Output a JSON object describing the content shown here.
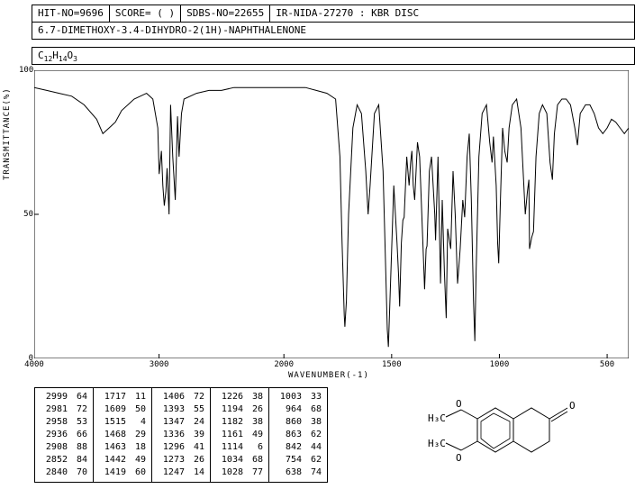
{
  "header": {
    "hit_no": "HIT-NO=9696",
    "score": "SCORE=  (  )",
    "sdbs_no": "SDBS-NO=22655",
    "ir_info": "IR-NIDA-27270 : KBR DISC",
    "compound_name": "6.7-DIMETHOXY-3.4-DIHYDRO-2(1H)-NAPHTHALENONE"
  },
  "formula": {
    "c": "C",
    "c_n": "12",
    "h": "H",
    "h_n": "14",
    "o": "O",
    "o_n": "3"
  },
  "chart": {
    "type": "line",
    "xlabel": "WAVENUMBER(-1)",
    "ylabel": "TRANSMITTANCE(%)",
    "xlim": [
      4000,
      400
    ],
    "ylim": [
      0,
      100
    ],
    "xticks": [
      4000,
      3000,
      2000,
      1500,
      1000,
      500
    ],
    "yticks": [
      0,
      50,
      100
    ],
    "line_color": "#000000",
    "background": "#ffffff",
    "border_color": "#000000",
    "spectrum": [
      [
        4000,
        94
      ],
      [
        3900,
        93
      ],
      [
        3800,
        92
      ],
      [
        3700,
        91
      ],
      [
        3600,
        88
      ],
      [
        3500,
        83
      ],
      [
        3450,
        78
      ],
      [
        3400,
        80
      ],
      [
        3350,
        82
      ],
      [
        3300,
        86
      ],
      [
        3200,
        90
      ],
      [
        3100,
        92
      ],
      [
        3050,
        90
      ],
      [
        3010,
        80
      ],
      [
        2999,
        64
      ],
      [
        2990,
        68
      ],
      [
        2981,
        72
      ],
      [
        2970,
        60
      ],
      [
        2958,
        53
      ],
      [
        2945,
        58
      ],
      [
        2936,
        66
      ],
      [
        2920,
        50
      ],
      [
        2908,
        88
      ],
      [
        2890,
        70
      ],
      [
        2870,
        55
      ],
      [
        2852,
        84
      ],
      [
        2840,
        70
      ],
      [
        2820,
        85
      ],
      [
        2800,
        90
      ],
      [
        2700,
        92
      ],
      [
        2600,
        93
      ],
      [
        2500,
        93
      ],
      [
        2400,
        94
      ],
      [
        2300,
        94
      ],
      [
        2200,
        94
      ],
      [
        2100,
        94
      ],
      [
        2000,
        94
      ],
      [
        1950,
        94
      ],
      [
        1900,
        94
      ],
      [
        1850,
        93
      ],
      [
        1800,
        92
      ],
      [
        1760,
        90
      ],
      [
        1740,
        70
      ],
      [
        1730,
        40
      ],
      [
        1720,
        15
      ],
      [
        1717,
        11
      ],
      [
        1710,
        20
      ],
      [
        1700,
        50
      ],
      [
        1680,
        80
      ],
      [
        1660,
        88
      ],
      [
        1640,
        85
      ],
      [
        1620,
        65
      ],
      [
        1609,
        50
      ],
      [
        1600,
        60
      ],
      [
        1580,
        85
      ],
      [
        1560,
        88
      ],
      [
        1540,
        65
      ],
      [
        1520,
        10
      ],
      [
        1515,
        4
      ],
      [
        1510,
        15
      ],
      [
        1490,
        60
      ],
      [
        1475,
        40
      ],
      [
        1468,
        29
      ],
      [
        1463,
        18
      ],
      [
        1455,
        40
      ],
      [
        1448,
        48
      ],
      [
        1442,
        49
      ],
      [
        1430,
        70
      ],
      [
        1419,
        60
      ],
      [
        1412,
        68
      ],
      [
        1406,
        72
      ],
      [
        1400,
        60
      ],
      [
        1393,
        55
      ],
      [
        1380,
        75
      ],
      [
        1370,
        70
      ],
      [
        1360,
        50
      ],
      [
        1350,
        30
      ],
      [
        1347,
        24
      ],
      [
        1340,
        38
      ],
      [
        1336,
        39
      ],
      [
        1325,
        65
      ],
      [
        1315,
        70
      ],
      [
        1300,
        50
      ],
      [
        1296,
        41
      ],
      [
        1285,
        70
      ],
      [
        1278,
        45
      ],
      [
        1273,
        26
      ],
      [
        1265,
        55
      ],
      [
        1255,
        30
      ],
      [
        1247,
        14
      ],
      [
        1240,
        45
      ],
      [
        1230,
        40
      ],
      [
        1226,
        38
      ],
      [
        1215,
        65
      ],
      [
        1205,
        50
      ],
      [
        1194,
        26
      ],
      [
        1188,
        32
      ],
      [
        1182,
        38
      ],
      [
        1170,
        55
      ],
      [
        1161,
        49
      ],
      [
        1150,
        70
      ],
      [
        1140,
        78
      ],
      [
        1130,
        55
      ],
      [
        1120,
        20
      ],
      [
        1114,
        6
      ],
      [
        1108,
        30
      ],
      [
        1095,
        70
      ],
      [
        1080,
        85
      ],
      [
        1060,
        88
      ],
      [
        1045,
        75
      ],
      [
        1034,
        68
      ],
      [
        1028,
        77
      ],
      [
        1015,
        60
      ],
      [
        1008,
        40
      ],
      [
        1003,
        33
      ],
      [
        995,
        55
      ],
      [
        985,
        80
      ],
      [
        975,
        72
      ],
      [
        964,
        68
      ],
      [
        955,
        80
      ],
      [
        940,
        88
      ],
      [
        920,
        90
      ],
      [
        900,
        80
      ],
      [
        880,
        50
      ],
      [
        870,
        58
      ],
      [
        863,
        62
      ],
      [
        860,
        38
      ],
      [
        850,
        42
      ],
      [
        842,
        44
      ],
      [
        830,
        70
      ],
      [
        815,
        85
      ],
      [
        800,
        88
      ],
      [
        780,
        85
      ],
      [
        765,
        68
      ],
      [
        754,
        62
      ],
      [
        745,
        78
      ],
      [
        730,
        88
      ],
      [
        710,
        90
      ],
      [
        690,
        90
      ],
      [
        670,
        88
      ],
      [
        650,
        80
      ],
      [
        638,
        74
      ],
      [
        625,
        85
      ],
      [
        600,
        88
      ],
      [
        580,
        88
      ],
      [
        560,
        85
      ],
      [
        540,
        80
      ],
      [
        520,
        78
      ],
      [
        500,
        80
      ],
      [
        480,
        83
      ],
      [
        460,
        82
      ],
      [
        440,
        80
      ],
      [
        420,
        78
      ],
      [
        400,
        80
      ]
    ]
  },
  "peak_table": {
    "columns": [
      [
        [
          2999,
          64
        ],
        [
          2981,
          72
        ],
        [
          2958,
          53
        ],
        [
          2936,
          66
        ],
        [
          2908,
          88
        ],
        [
          2852,
          84
        ],
        [
          2840,
          70
        ]
      ],
      [
        [
          1717,
          11
        ],
        [
          1609,
          50
        ],
        [
          1515,
          4
        ],
        [
          1468,
          29
        ],
        [
          1463,
          18
        ],
        [
          1442,
          49
        ],
        [
          1419,
          60
        ]
      ],
      [
        [
          1406,
          72
        ],
        [
          1393,
          55
        ],
        [
          1347,
          24
        ],
        [
          1336,
          39
        ],
        [
          1296,
          41
        ],
        [
          1273,
          26
        ],
        [
          1247,
          14
        ]
      ],
      [
        [
          1226,
          38
        ],
        [
          1194,
          26
        ],
        [
          1182,
          38
        ],
        [
          1161,
          49
        ],
        [
          1114,
          6
        ],
        [
          1034,
          68
        ],
        [
          1028,
          77
        ]
      ],
      [
        [
          1003,
          33
        ],
        [
          964,
          68
        ],
        [
          860,
          38
        ],
        [
          863,
          62
        ],
        [
          842,
          44
        ],
        [
          754,
          62
        ],
        [
          638,
          74
        ]
      ]
    ]
  },
  "structure": {
    "labels": {
      "ch3o_1": "H₃C",
      "o_1": "O",
      "ch3o_2": "H₃C",
      "o_2": "O",
      "ketone": "O"
    }
  }
}
